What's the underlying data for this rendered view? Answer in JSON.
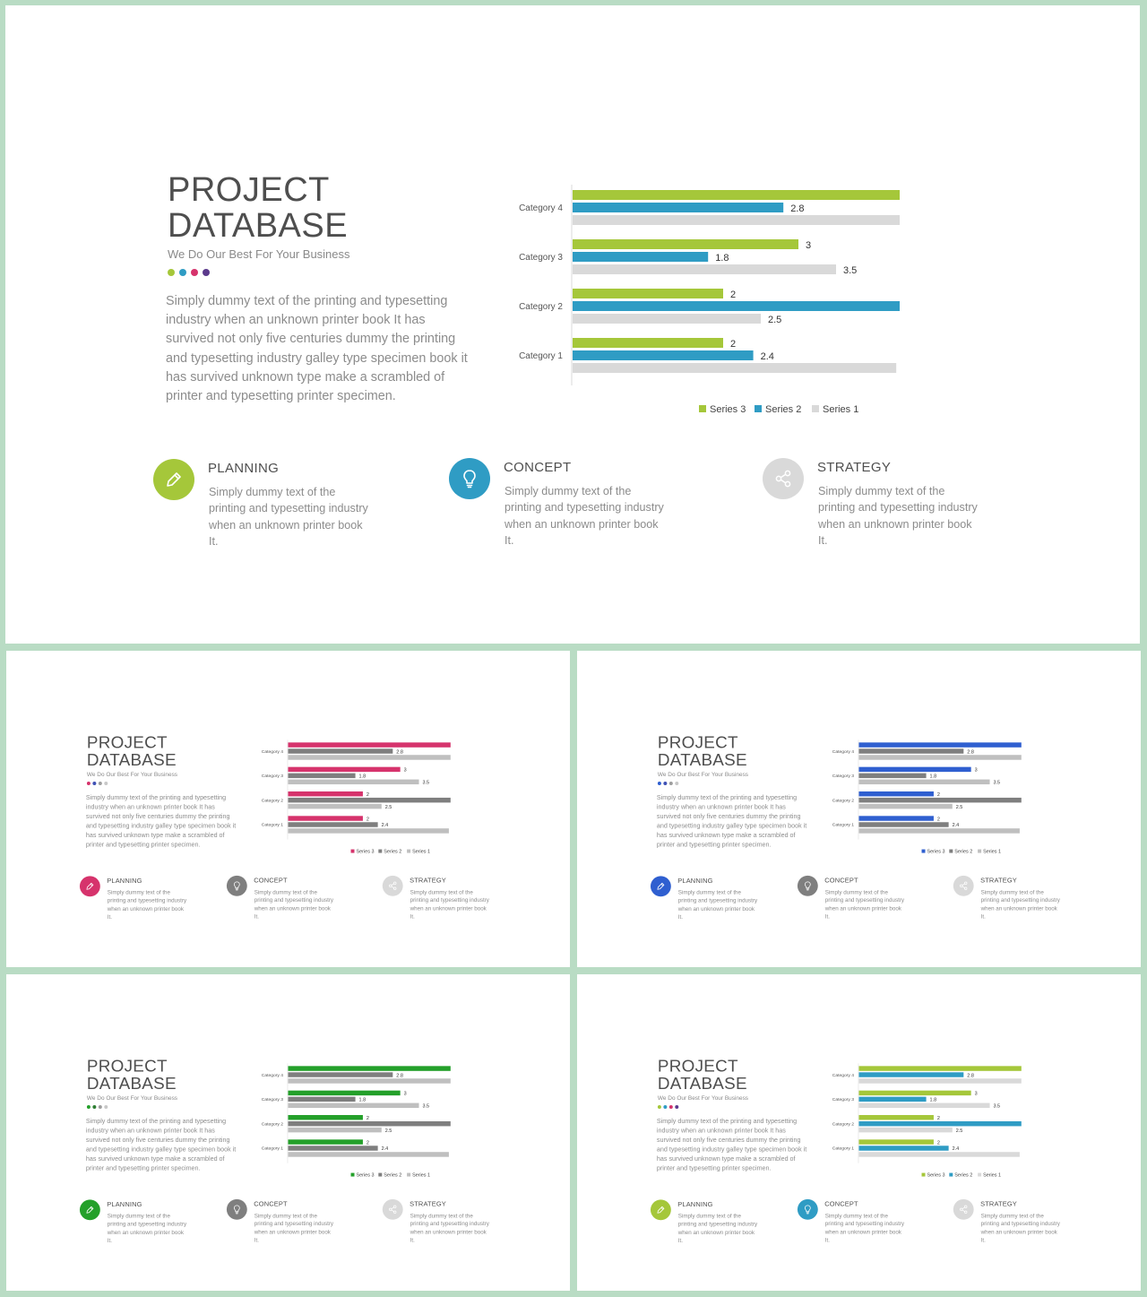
{
  "slide": {
    "title_line1": "PROJECT",
    "title_line2": "DATABASE",
    "subtitle": "We Do Our Best For Your Business",
    "body": "Simply dummy text of the printing and typesetting industry when an unknown printer book It has survived not only five centuries dummy the printing and typesetting industry galley type specimen book it has survived unknown type make a scrambled of printer and typesetting printer specimen.",
    "features": [
      {
        "title": "PLANNING",
        "desc": "Simply dummy text of the printing and typesetting industry when an unknown printer book It.",
        "icon": "pencil-icon"
      },
      {
        "title": "CONCEPT",
        "desc": "Simply dummy text of the printing and typesetting industry when an unknown printer book It.",
        "icon": "lightbulb-icon"
      },
      {
        "title": "STRATEGY",
        "desc": "Simply dummy text of the printing and typesetting industry when an unknown printer book It.",
        "icon": "share-icon"
      }
    ]
  },
  "variants": [
    {
      "id": "main",
      "series_colors": [
        "#a5c73a",
        "#2f9cc4",
        "#d9d9d9"
      ],
      "icon_colors": [
        "#a5c73a",
        "#2f9cc4",
        "#d9d9d9"
      ],
      "dot_colors": [
        "#a5c73a",
        "#2f9cc4",
        "#d6336c",
        "#5b3a8c"
      ]
    },
    {
      "id": "pink",
      "series_colors": [
        "#d6336c",
        "#7f7f7f",
        "#bfbfbf"
      ],
      "icon_colors": [
        "#d6336c",
        "#7f7f7f",
        "#d9d9d9"
      ],
      "dot_colors": [
        "#d6336c",
        "#3f51b5",
        "#9e9e9e",
        "#c8c8c8"
      ]
    },
    {
      "id": "blue",
      "series_colors": [
        "#2f5fd0",
        "#7f7f7f",
        "#bfbfbf"
      ],
      "icon_colors": [
        "#2f5fd0",
        "#7f7f7f",
        "#d9d9d9"
      ],
      "dot_colors": [
        "#2f5fd0",
        "#3f51b5",
        "#9e9e9e",
        "#c8c8c8"
      ]
    },
    {
      "id": "green",
      "series_colors": [
        "#24a02a",
        "#7f7f7f",
        "#bfbfbf"
      ],
      "icon_colors": [
        "#24a02a",
        "#7f7f7f",
        "#d9d9d9"
      ],
      "dot_colors": [
        "#24a02a",
        "#2e7d32",
        "#9e9e9e",
        "#c8c8c8"
      ]
    },
    {
      "id": "mixed",
      "series_colors": [
        "#a5c73a",
        "#2f9cc4",
        "#d9d9d9"
      ],
      "icon_colors": [
        "#a5c73a",
        "#2f9cc4",
        "#d9d9d9"
      ],
      "dot_colors": [
        "#a5c73a",
        "#2f9cc4",
        "#d6336c",
        "#5b3a8c"
      ]
    }
  ],
  "chart_data": {
    "type": "bar",
    "orientation": "horizontal",
    "categories": [
      "Category 1",
      "Category 2",
      "Category 3",
      "Category 4"
    ],
    "series": [
      {
        "name": "Series 3",
        "values": [
          2,
          2,
          3,
          5
        ]
      },
      {
        "name": "Series 2",
        "values": [
          2.4,
          4.4,
          1.8,
          2.8
        ]
      },
      {
        "name": "Series 1",
        "values": [
          4.3,
          2.5,
          3.5,
          4.5
        ]
      }
    ],
    "xlim": [
      0,
      5
    ],
    "legend": "bottom",
    "data_labels": true,
    "grid": false
  }
}
